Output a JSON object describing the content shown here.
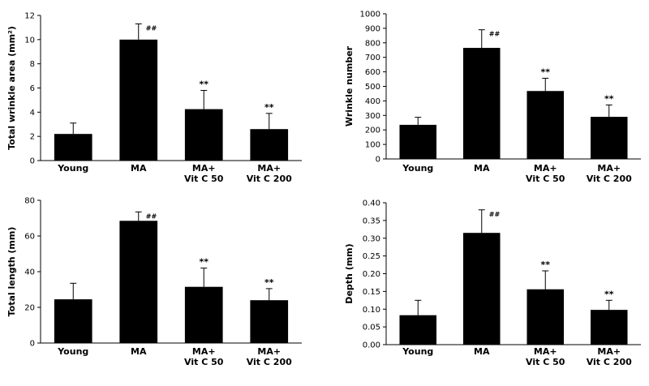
{
  "chart_data": [
    {
      "type": "bar",
      "ylabel": "Total wrinkle area (mm²)",
      "categories": [
        [
          "Young"
        ],
        [
          "MA"
        ],
        [
          "MA+",
          "Vit C 50"
        ],
        [
          "MA+",
          "Vit C 200"
        ]
      ],
      "values": [
        2.2,
        10.0,
        4.25,
        2.6
      ],
      "errors": [
        0.9,
        1.3,
        1.55,
        1.3
      ],
      "markers": [
        "",
        "##",
        "**",
        "**"
      ],
      "ylim": [
        0,
        12
      ],
      "yticks": [
        0,
        2,
        4,
        6,
        8,
        10,
        12
      ],
      "ytick_labels": [
        "0",
        "2",
        "4",
        "6",
        "8",
        "10",
        "12"
      ]
    },
    {
      "type": "bar",
      "ylabel": "Wrinkle number",
      "categories": [
        [
          "Young"
        ],
        [
          "MA"
        ],
        [
          "MA+",
          "Vit C 50"
        ],
        [
          "MA+",
          "Vit C 200"
        ]
      ],
      "values": [
        235,
        765,
        468,
        290
      ],
      "errors": [
        52,
        125,
        88,
        82
      ],
      "markers": [
        "",
        "##",
        "**",
        "**"
      ],
      "ylim": [
        0,
        1000
      ],
      "yticks": [
        0,
        100,
        200,
        300,
        400,
        500,
        600,
        700,
        800,
        900,
        1000
      ],
      "ytick_labels": [
        "0",
        "100",
        "200",
        "300",
        "400",
        "500",
        "600",
        "700",
        "800",
        "900",
        "1000"
      ]
    },
    {
      "type": "bar",
      "ylabel": "Total length (mm)",
      "categories": [
        [
          "Young"
        ],
        [
          "MA"
        ],
        [
          "MA+",
          "Vit C 50"
        ],
        [
          "MA+",
          "Vit C 200"
        ]
      ],
      "values": [
        24.5,
        68.5,
        31.5,
        24.0
      ],
      "errors": [
        9.0,
        5.0,
        10.5,
        6.5
      ],
      "markers": [
        "",
        "##",
        "**",
        "**"
      ],
      "ylim": [
        0,
        80
      ],
      "yticks": [
        0,
        20,
        40,
        60,
        80
      ],
      "ytick_labels": [
        "0",
        "20",
        "40",
        "60",
        "80"
      ]
    },
    {
      "type": "bar",
      "ylabel": "Depth (mm)",
      "categories": [
        [
          "Young"
        ],
        [
          "MA"
        ],
        [
          "MA+",
          "Vit C 50"
        ],
        [
          "MA+",
          "Vit C 200"
        ]
      ],
      "values": [
        0.083,
        0.315,
        0.156,
        0.098
      ],
      "errors": [
        0.042,
        0.065,
        0.052,
        0.027
      ],
      "markers": [
        "",
        "##",
        "**",
        "**"
      ],
      "ylim": [
        0,
        0.4
      ],
      "yticks": [
        0,
        0.05,
        0.1,
        0.15,
        0.2,
        0.25,
        0.3,
        0.35,
        0.4
      ],
      "ytick_labels": [
        "0.00",
        "0.05",
        "0.10",
        "0.15",
        "0.20",
        "0.25",
        "0.30",
        "0.35",
        "0.40"
      ]
    }
  ]
}
